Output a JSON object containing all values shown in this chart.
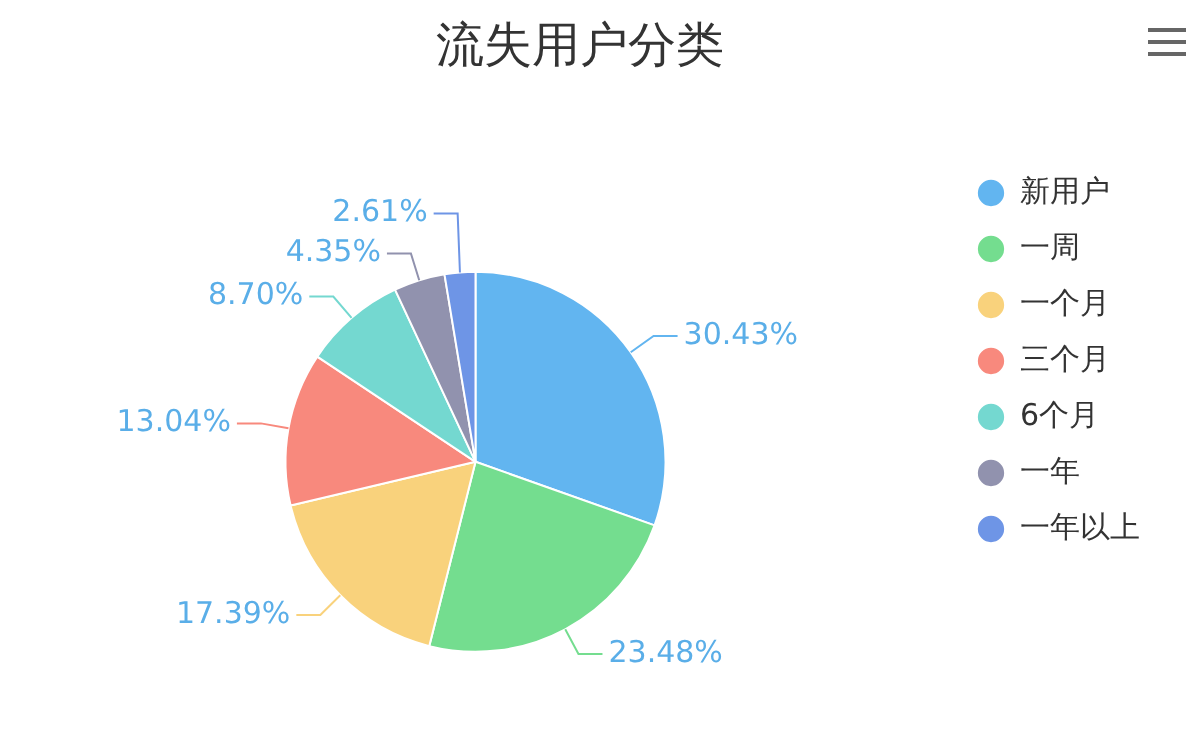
{
  "chart_data": {
    "type": "pie",
    "title": "流失用户分类",
    "categories": [
      "新用户",
      "一周",
      "一个月",
      "三个月",
      "6个月",
      "一年",
      "一年以上"
    ],
    "values": [
      30.43,
      23.48,
      17.39,
      13.04,
      8.7,
      4.35,
      2.61
    ],
    "value_labels": [
      "30.43%",
      "23.48%",
      "17.39%",
      "13.04%",
      "8.70%",
      "4.35%",
      "2.61%"
    ],
    "colors": [
      "#62b5f0",
      "#74dd8f",
      "#f9d27c",
      "#f8897d",
      "#74d8d0",
      "#9192ae",
      "#6e95e6"
    ],
    "legend": "right"
  }
}
